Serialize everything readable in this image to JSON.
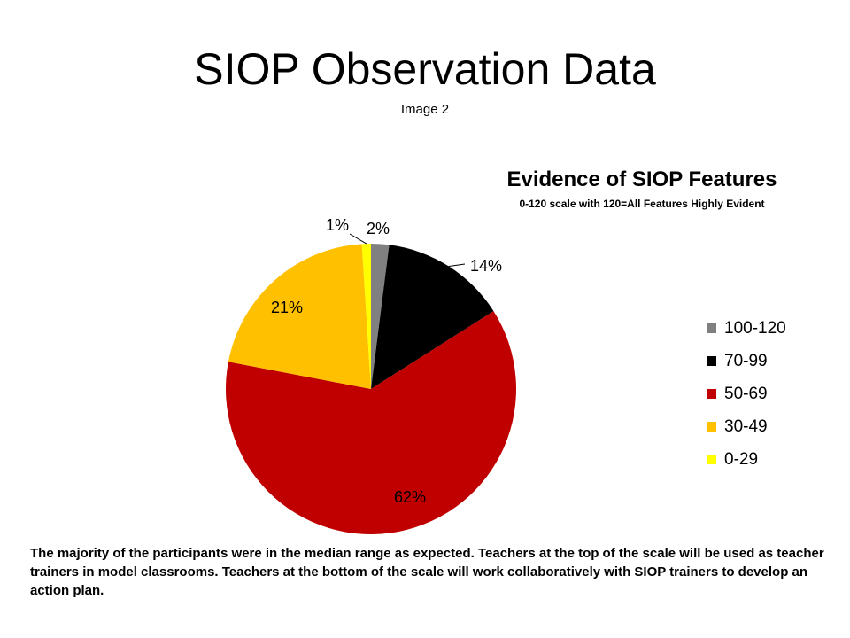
{
  "slide": {
    "title": "SIOP Observation Data",
    "subtitle": "Image 2",
    "caption": "The majority of the participants were in the median range as expected.  Teachers at the top of the scale will be used as teacher trainers in model classrooms.  Teachers at the bottom of the scale will work collaboratively with SIOP trainers to develop an action plan."
  },
  "chart_data": {
    "type": "pie",
    "title": "Evidence of SIOP Features",
    "subtitle": "0-120 scale with 120=All Features Highly Evident",
    "legend_position": "right",
    "slices": [
      {
        "label": "100-120",
        "value": 2,
        "display": "2%",
        "color": "#808080"
      },
      {
        "label": "70-99",
        "value": 14,
        "display": "14%",
        "color": "#000000"
      },
      {
        "label": "50-69",
        "value": 62,
        "display": "62%",
        "color": "#C00000"
      },
      {
        "label": "30-49",
        "value": 21,
        "display": "21%",
        "color": "#FFC000"
      },
      {
        "label": "0-29",
        "value": 1,
        "display": "1%",
        "color": "#FFFF00"
      }
    ]
  }
}
